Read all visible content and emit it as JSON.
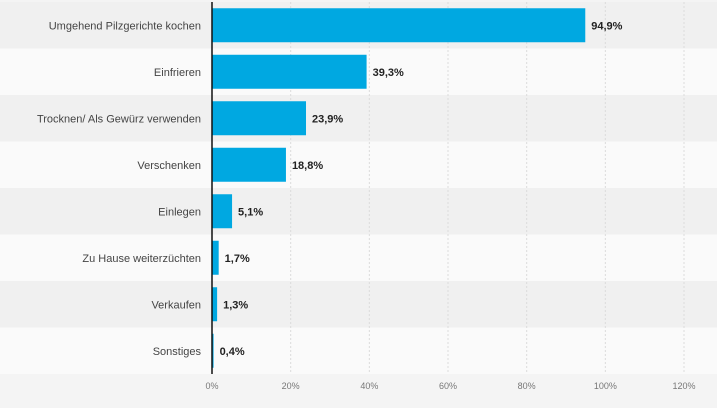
{
  "chart_data": {
    "type": "bar",
    "orientation": "horizontal",
    "categories": [
      "Umgehend Pilzgerichte kochen",
      "Einfrieren",
      "Trocknen/ Als Gewürz verwenden",
      "Verschenken",
      "Einlegen",
      "Zu Hause weiterzüchten",
      "Verkaufen",
      "Sonstiges"
    ],
    "values": [
      94.9,
      39.3,
      23.9,
      18.8,
      5.1,
      1.7,
      1.3,
      0.4
    ],
    "data_labels": [
      "94,9%",
      "39,3%",
      "23,9%",
      "18,8%",
      "5,1%",
      "1,7%",
      "1,3%",
      "0,4%"
    ],
    "xlim": [
      0,
      120
    ],
    "xticks": [
      0,
      20,
      40,
      60,
      80,
      100,
      120
    ],
    "xtick_labels": [
      "0%",
      "20%",
      "40%",
      "60%",
      "80%",
      "100%",
      "120%"
    ],
    "grid": true,
    "colors": {
      "bar": "#00a8e1",
      "band_dark": "#f0f0f0",
      "band_light": "#fafafa",
      "background": "#f4f4f4"
    }
  }
}
